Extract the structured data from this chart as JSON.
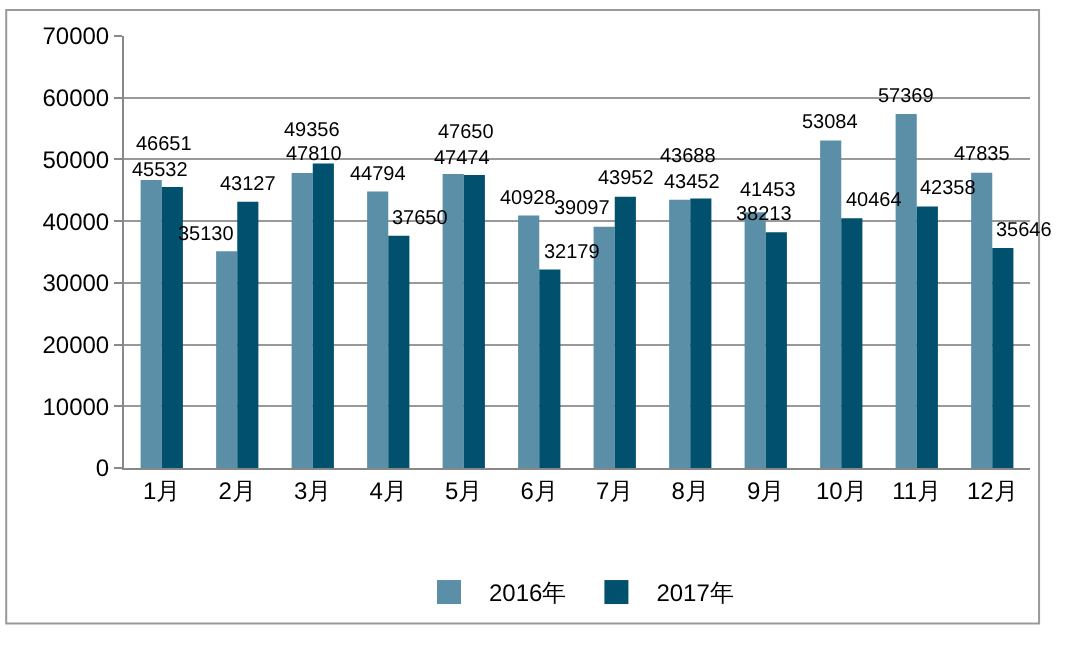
{
  "chart_data": {
    "type": "bar",
    "categories": [
      "1月",
      "2月",
      "3月",
      "4月",
      "5月",
      "6月",
      "7月",
      "8月",
      "9月",
      "10月",
      "11月",
      "12月"
    ],
    "series": [
      {
        "name": "2016年",
        "color": "#5b8fa8",
        "values": [
          46651,
          35130,
          47810,
          44794,
          47650,
          40928,
          39097,
          43452,
          41453,
          53084,
          57369,
          47835
        ]
      },
      {
        "name": "2017年",
        "color": "#00506e",
        "values": [
          45532,
          43127,
          49356,
          37650,
          47474,
          32179,
          43952,
          43688,
          38213,
          40464,
          42358,
          35646
        ]
      }
    ],
    "ylim": [
      0,
      70000
    ],
    "yticks": [
      0,
      10000,
      20000,
      30000,
      40000,
      50000,
      60000,
      70000
    ],
    "grid": "y",
    "legend": "bottom",
    "data_labels": true
  }
}
